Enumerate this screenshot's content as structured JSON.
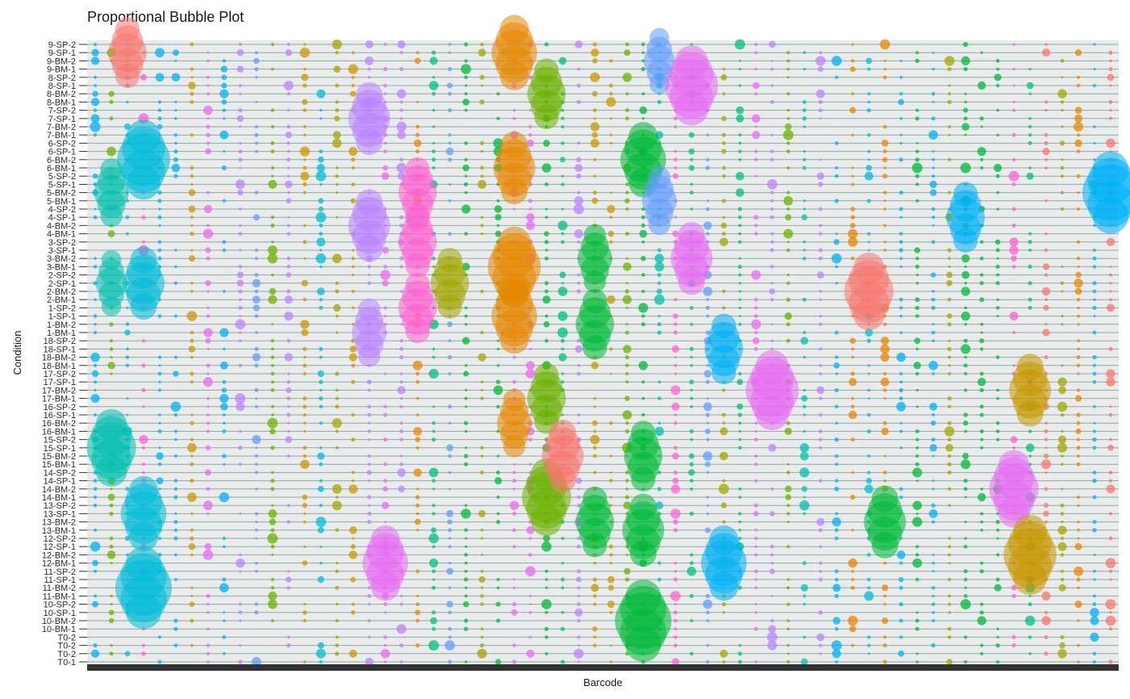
{
  "chart_data": {
    "type": "scatter",
    "subtype": "proportional-bubble",
    "title": "Proportional Bubble Plot",
    "xlabel": "Barcode",
    "ylabel": "Condition",
    "x_tick_labels_shown": false,
    "grid": true,
    "legend": "none",
    "conditions": [
      "9-SP-2",
      "9-SP-1",
      "9-BM-2",
      "9-BM-1",
      "8-SP-2",
      "8-SP-1",
      "8-BM-2",
      "8-BM-1",
      "7-SP-2",
      "7-SP-1",
      "7-BM-2",
      "7-BM-1",
      "6-SP-2",
      "6-SP-1",
      "6-BM-2",
      "6-BM-1",
      "5-SP-2",
      "5-SP-1",
      "5-BM-2",
      "5-BM-1",
      "4-SP-2",
      "4-SP-1",
      "4-BM-2",
      "4-BM-1",
      "3-SP-2",
      "3-SP-1",
      "3-BM-2",
      "3-BM-1",
      "2-SP-2",
      "2-SP-1",
      "2-BM-2",
      "2-BM-1",
      "1-SP-2",
      "1-SP-1",
      "1-BM-2",
      "1-BM-1",
      "18-SP-2",
      "18-SP-1",
      "18-BM-2",
      "18-BM-1",
      "17-SP-2",
      "17-SP-1",
      "17-BM-2",
      "17-BM-1",
      "16-SP-2",
      "16-SP-1",
      "16-BM-2",
      "16-BM-1",
      "15-SP-2",
      "15-SP-1",
      "15-BM-2",
      "15-BM-1",
      "14-SP-2",
      "14-SP-1",
      "14-BM-2",
      "14-BM-1",
      "13-SP-2",
      "13-SP-1",
      "13-BM-2",
      "13-BM-1",
      "12-SP-2",
      "12-SP-1",
      "12-BM-2",
      "12-BM-1",
      "11-SP-2",
      "11-SP-1",
      "11-BM-2",
      "11-BM-1",
      "10-SP-2",
      "10-SP-1",
      "10-BM-2",
      "10-BM-1",
      "T0-2",
      "T0-2",
      "T0-2",
      "T0-1"
    ],
    "palette": [
      "#F8766D",
      "#E58700",
      "#C99800",
      "#A3A500",
      "#6BB100",
      "#00BA38",
      "#00BF7D",
      "#00C0AF",
      "#00BCD8",
      "#00B0F6",
      "#619CFF",
      "#B983FF",
      "#E76BF3",
      "#FD61D1"
    ],
    "major_clones": [
      {
        "barcode": 3,
        "color": "#00BCD8",
        "cells": [
          {
            "row": 14,
            "size": 0.55
          },
          {
            "row": 66,
            "size": 0.6
          },
          {
            "row": 57,
            "size": 0.45
          },
          {
            "row": 29,
            "size": 0.4
          }
        ]
      },
      {
        "barcode": 1,
        "color": "#00C0AF",
        "cells": [
          {
            "row": 49,
            "size": 0.5
          },
          {
            "row": 18,
            "size": 0.3
          },
          {
            "row": 29,
            "size": 0.25
          }
        ]
      },
      {
        "barcode": 2,
        "color": "#F8766D",
        "cells": [
          {
            "row": 1,
            "size": 0.35
          }
        ]
      },
      {
        "barcode": 16,
        "color": "#B983FF",
        "cells": [
          {
            "row": 9,
            "size": 0.4
          },
          {
            "row": 22,
            "size": 0.4
          },
          {
            "row": 35,
            "size": 0.3
          }
        ]
      },
      {
        "barcode": 17,
        "color": "#E76BF3",
        "cells": [
          {
            "row": 63,
            "size": 0.45
          }
        ]
      },
      {
        "barcode": 19,
        "color": "#FD61D1",
        "cells": [
          {
            "row": 18,
            "size": 0.35
          },
          {
            "row": 24,
            "size": 0.35
          },
          {
            "row": 32,
            "size": 0.35
          }
        ]
      },
      {
        "barcode": 21,
        "color": "#A3A500",
        "cells": [
          {
            "row": 29,
            "size": 0.35
          }
        ]
      },
      {
        "barcode": 25,
        "color": "#E58700",
        "cells": [
          {
            "row": 1,
            "size": 0.45
          },
          {
            "row": 15,
            "size": 0.4
          },
          {
            "row": 27,
            "size": 0.55
          },
          {
            "row": 33,
            "size": 0.45
          },
          {
            "row": 46,
            "size": 0.3
          }
        ]
      },
      {
        "barcode": 27,
        "color": "#6BB100",
        "cells": [
          {
            "row": 55,
            "size": 0.5
          },
          {
            "row": 43,
            "size": 0.35
          },
          {
            "row": 6,
            "size": 0.35
          }
        ]
      },
      {
        "barcode": 28,
        "color": "#F8766D",
        "cells": [
          {
            "row": 50,
            "size": 0.4
          }
        ]
      },
      {
        "barcode": 30,
        "color": "#00BA38",
        "cells": [
          {
            "row": 34,
            "size": 0.35
          },
          {
            "row": 26,
            "size": 0.3
          },
          {
            "row": 58,
            "size": 0.35
          }
        ]
      },
      {
        "barcode": 33,
        "color": "#00BA38",
        "cells": [
          {
            "row": 14,
            "size": 0.45
          },
          {
            "row": 70,
            "size": 0.6
          },
          {
            "row": 59,
            "size": 0.4
          },
          {
            "row": 50,
            "size": 0.35
          }
        ]
      },
      {
        "barcode": 34,
        "color": "#619CFF",
        "cells": [
          {
            "row": 19,
            "size": 0.3
          },
          {
            "row": 2,
            "size": 0.25
          }
        ]
      },
      {
        "barcode": 36,
        "color": "#E76BF3",
        "cells": [
          {
            "row": 5,
            "size": 0.55
          },
          {
            "row": 26,
            "size": 0.4
          }
        ]
      },
      {
        "barcode": 38,
        "color": "#00B0F6",
        "cells": [
          {
            "row": 63,
            "size": 0.45
          },
          {
            "row": 37,
            "size": 0.35
          }
        ]
      },
      {
        "barcode": 41,
        "color": "#E76BF3",
        "cells": [
          {
            "row": 42,
            "size": 0.55
          }
        ]
      },
      {
        "barcode": 46,
        "color": "#F8766D",
        "cells": [
          {
            "row": 30,
            "size": 0.5
          }
        ]
      },
      {
        "barcode": 47,
        "color": "#00BA38",
        "cells": [
          {
            "row": 58,
            "size": 0.4
          }
        ]
      },
      {
        "barcode": 52,
        "color": "#00B0F6",
        "cells": [
          {
            "row": 21,
            "size": 0.35
          }
        ]
      },
      {
        "barcode": 55,
        "color": "#E76BF3",
        "cells": [
          {
            "row": 54,
            "size": 0.5
          }
        ]
      },
      {
        "barcode": 56,
        "color": "#C99800",
        "cells": [
          {
            "row": 62,
            "size": 0.55
          },
          {
            "row": 42,
            "size": 0.4
          }
        ]
      },
      {
        "barcode": 61,
        "color": "#00B0F6",
        "cells": [
          {
            "row": 18,
            "size": 0.6
          }
        ]
      }
    ]
  }
}
